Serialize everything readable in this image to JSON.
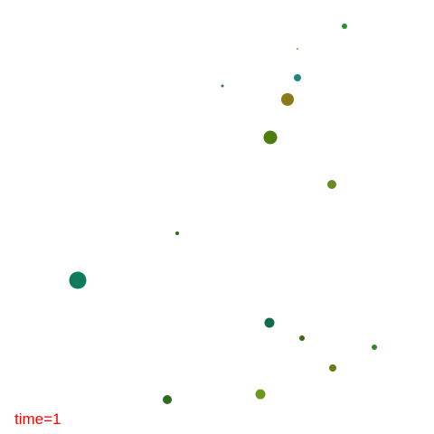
{
  "status": {
    "time_label": "time=1",
    "time_color": "#ff0000"
  },
  "scene": {
    "background": "#ffffff",
    "particles": [
      {
        "color": "#2f8f2f"
      },
      {
        "color": "#b8861e"
      },
      {
        "color": "#1a8a7a"
      },
      {
        "color": "#2e7d32"
      },
      {
        "color": "#8a7a1a"
      },
      {
        "color": "#4b7d0a"
      },
      {
        "color": "#6b8a23"
      },
      {
        "color": "#2e6b1e"
      },
      {
        "color": "#107a5c"
      },
      {
        "color": "#0f6b4a"
      },
      {
        "color": "#3d6b0a"
      },
      {
        "color": "#2f8a2f"
      },
      {
        "color": "#6b7d1e"
      },
      {
        "color": "#2e6b1e"
      },
      {
        "color": "#6b9a1a"
      }
    ]
  }
}
